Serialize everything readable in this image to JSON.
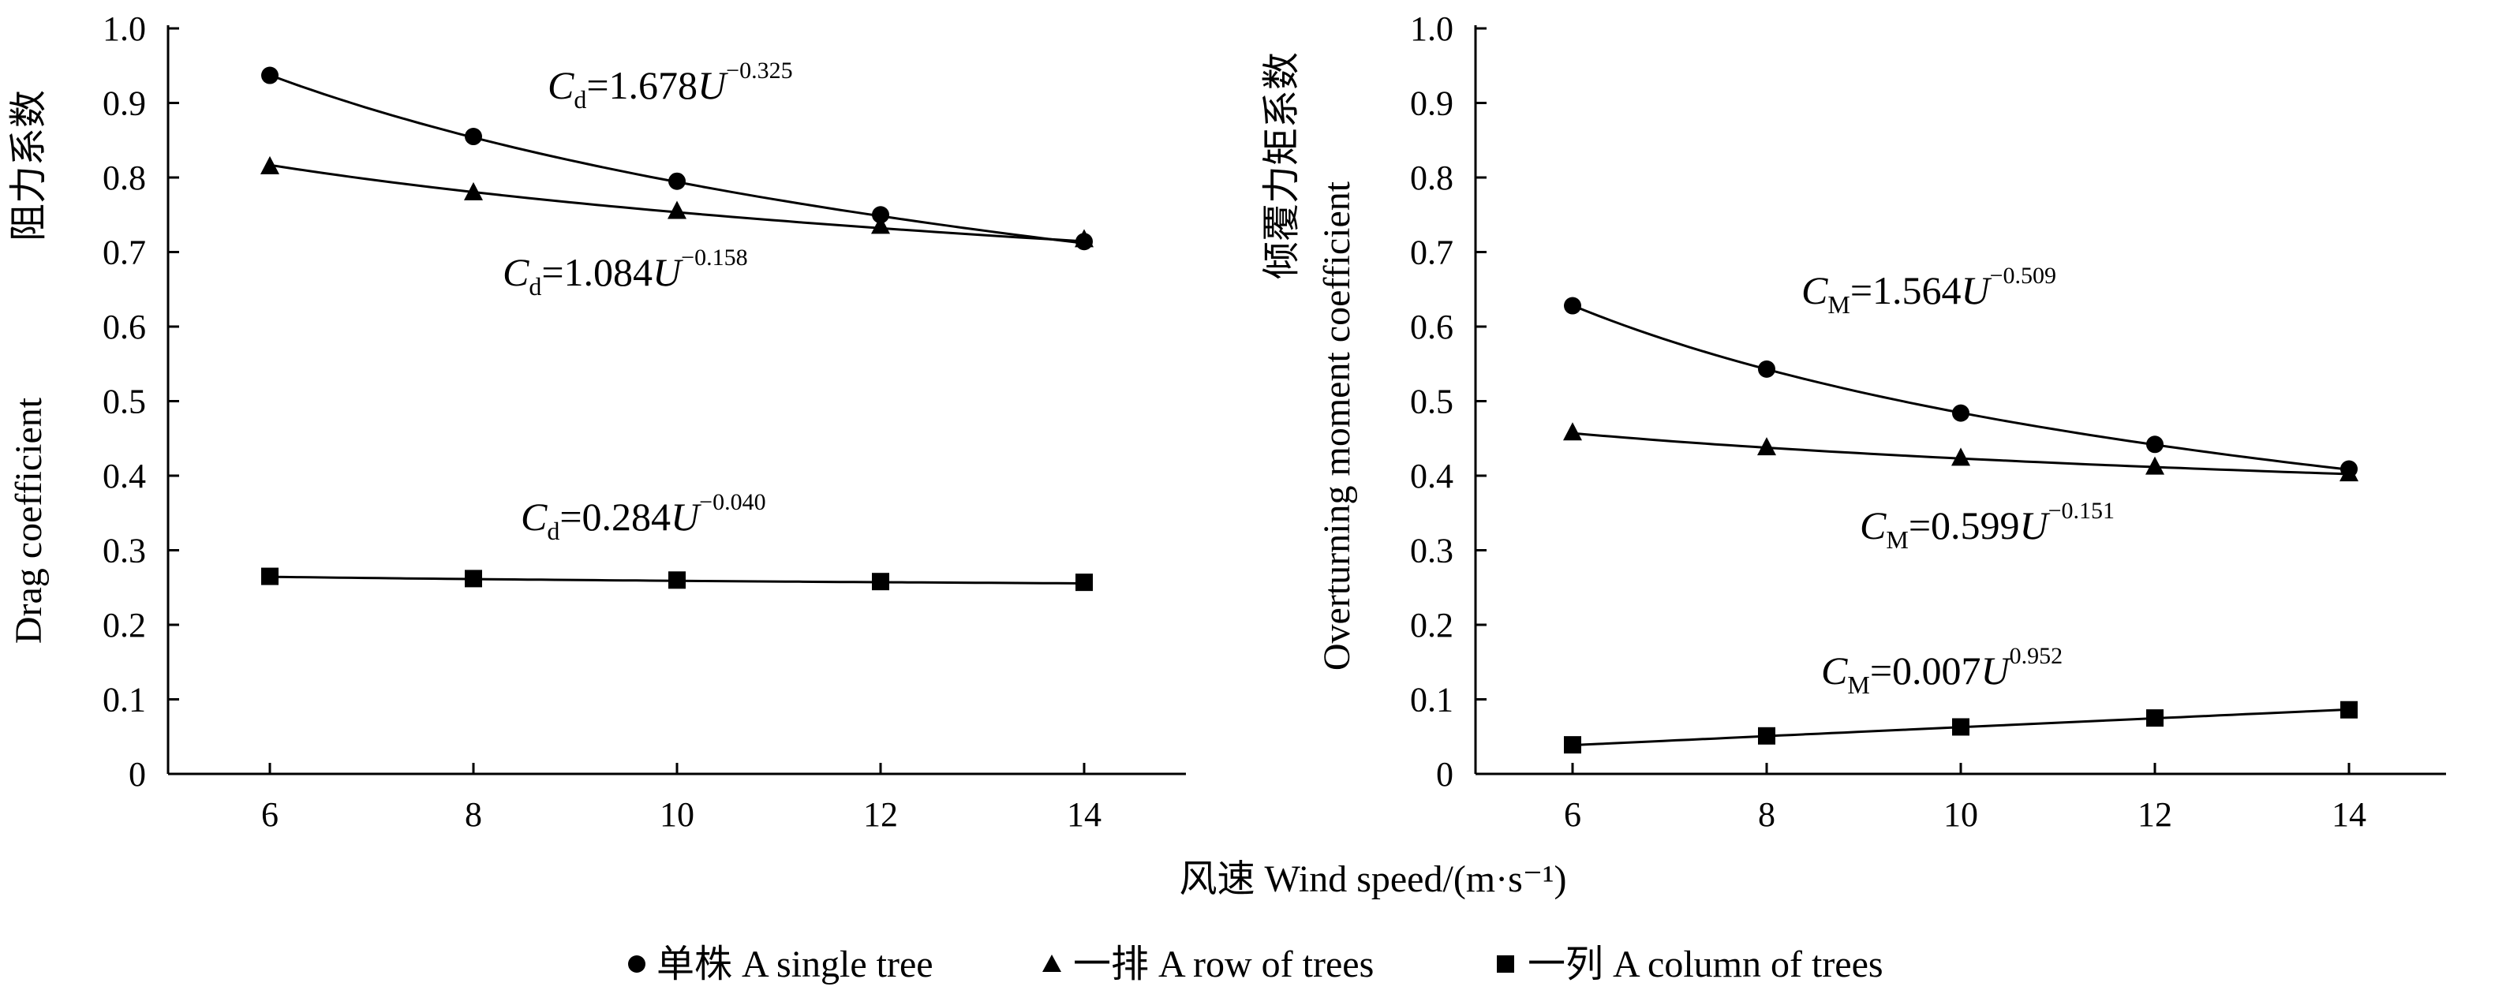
{
  "shared": {
    "xlabel": "风速  Wind speed/(m·s⁻¹)"
  },
  "legend": {
    "items": [
      {
        "marker": "circle",
        "label": "单株 A single tree"
      },
      {
        "marker": "triangle",
        "label": "一排 A row of trees"
      },
      {
        "marker": "square",
        "label": "一列 A column of trees"
      }
    ]
  },
  "chart_data": [
    {
      "type": "scatter",
      "ylabel_cn": "阻力系数",
      "ylabel_en": "Drag coefficient",
      "x": [
        6,
        8,
        10,
        12,
        14
      ],
      "xticks": [
        "6",
        "8",
        "10",
        "12",
        "14"
      ],
      "xlim": [
        5,
        15
      ],
      "ylim": [
        0,
        1.0
      ],
      "yticks": [
        "0",
        "0.1",
        "0.2",
        "0.3",
        "0.4",
        "0.5",
        "0.6",
        "0.7",
        "0.8",
        "0.9",
        "1.0"
      ],
      "series": [
        {
          "name": "单株 A single tree",
          "marker": "circle",
          "values": [
            0.937,
            0.855,
            0.795,
            0.75,
            0.714
          ],
          "fit": {
            "a": 1.678,
            "b": -0.325,
            "text_sym": "C",
            "text_sub": "d",
            "text_main": "=1.678U",
            "text_exp": "−0.325"
          }
        },
        {
          "name": "一排 A row of trees",
          "marker": "triangle",
          "values": [
            0.815,
            0.78,
            0.755,
            0.735,
            0.717
          ],
          "fit": {
            "a": 1.084,
            "b": -0.158,
            "text_sym": "C",
            "text_sub": "d",
            "text_main": "=1.084U",
            "text_exp": "−0.158"
          }
        },
        {
          "name": "一列 A column of trees",
          "marker": "square",
          "values": [
            0.265,
            0.262,
            0.26,
            0.258,
            0.257
          ],
          "fit": {
            "a": 0.284,
            "b": -0.04,
            "text_sym": "C",
            "text_sub": "d",
            "text_main": "=0.284U",
            "text_exp": "−0.040"
          }
        }
      ]
    },
    {
      "type": "scatter",
      "ylabel_cn": "倾覆力矩系数",
      "ylabel_en": "Overturning moment coefficient",
      "x": [
        6,
        8,
        10,
        12,
        14
      ],
      "xticks": [
        "6",
        "8",
        "10",
        "12",
        "14"
      ],
      "xlim": [
        5,
        15
      ],
      "ylim": [
        0,
        1.0
      ],
      "yticks": [
        "0",
        "0.1",
        "0.2",
        "0.3",
        "0.4",
        "0.5",
        "0.6",
        "0.7",
        "0.8",
        "0.9",
        "1.0"
      ],
      "series": [
        {
          "name": "单株 A single tree",
          "marker": "circle",
          "values": [
            0.628,
            0.543,
            0.484,
            0.442,
            0.409
          ],
          "fit": {
            "a": 1.564,
            "b": -0.509,
            "text_sym": "C",
            "text_sub": "M",
            "text_main": "=1.564U",
            "text_exp": "−0.509"
          }
        },
        {
          "name": "一排 A row of trees",
          "marker": "triangle",
          "values": [
            0.458,
            0.438,
            0.424,
            0.412,
            0.403
          ],
          "fit": {
            "a": 0.599,
            "b": -0.151,
            "text_sym": "C",
            "text_sub": "M",
            "text_main": "=0.599U",
            "text_exp": "−0.151"
          }
        },
        {
          "name": "一列 A column of trees",
          "marker": "square",
          "values": [
            0.039,
            0.051,
            0.063,
            0.075,
            0.086
          ],
          "fit": {
            "a": 0.007,
            "b": 0.952,
            "text_sym": "C",
            "text_sub": "M",
            "text_main": "=0.007U",
            "text_exp": "0.952"
          }
        }
      ]
    }
  ]
}
